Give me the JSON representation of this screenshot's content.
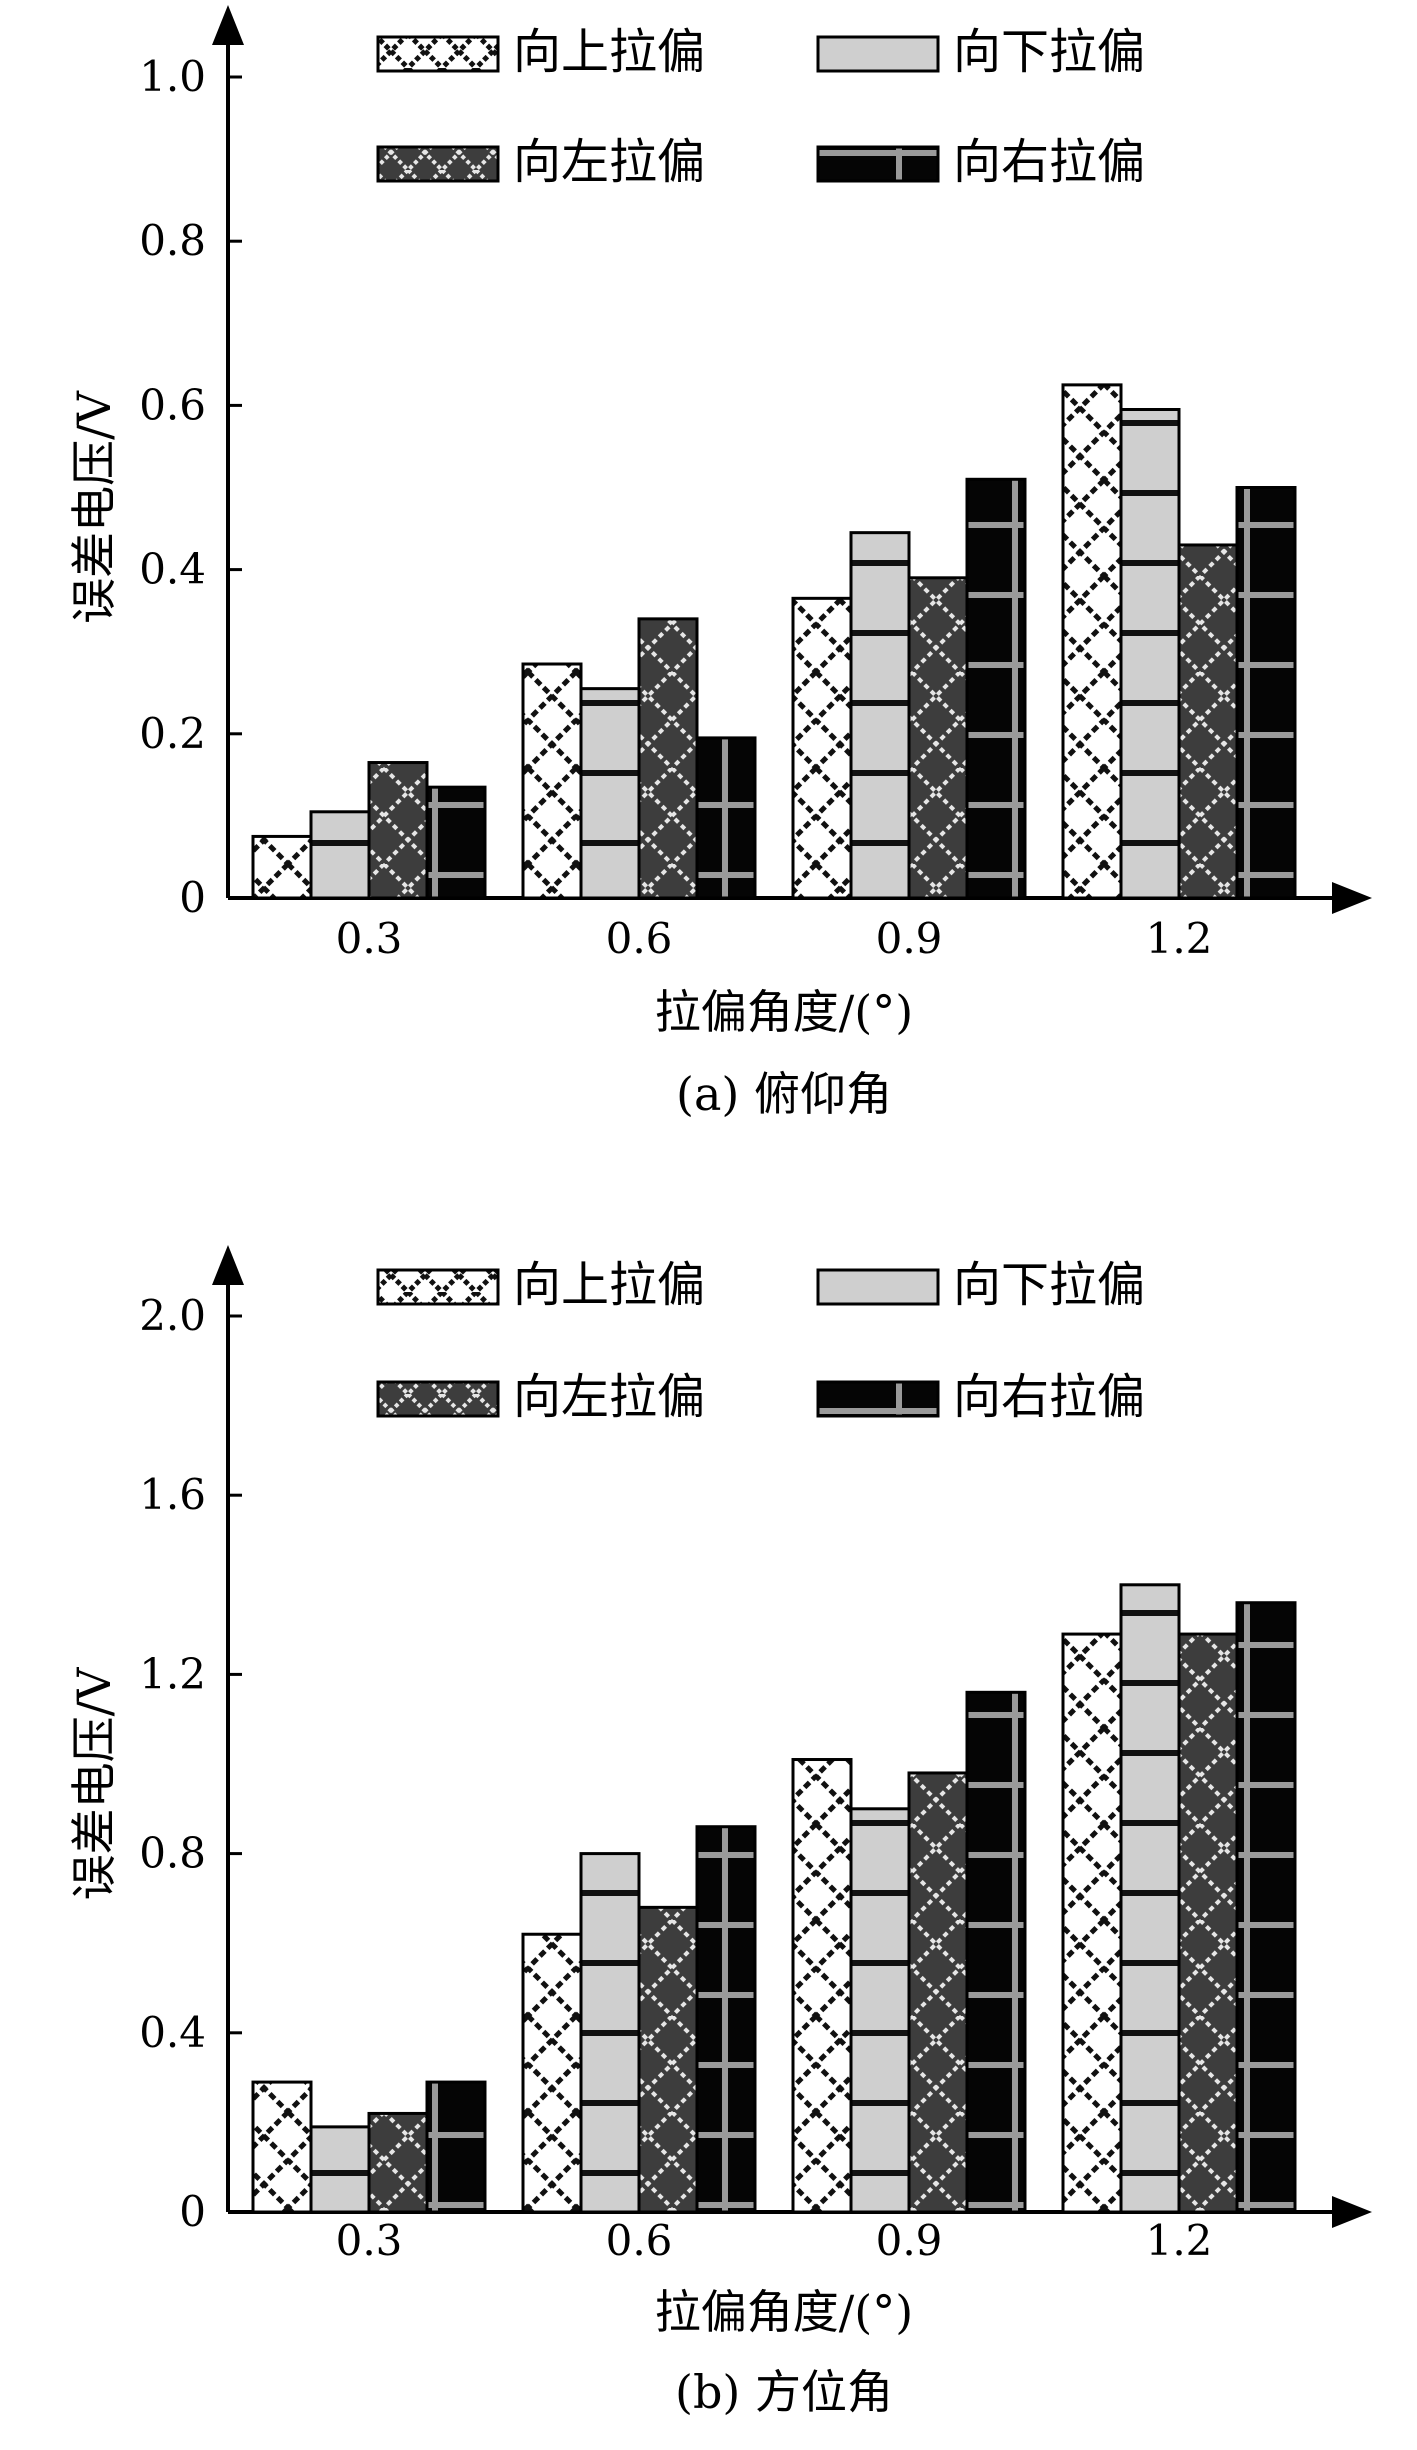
{
  "chart_data": [
    {
      "type": "bar",
      "caption": "(a) 俯仰角",
      "xlabel": "拉偏角度/(°)",
      "ylabel": "误差电压/V",
      "categories": [
        "0.3",
        "0.6",
        "0.9",
        "1.2"
      ],
      "ylim": [
        0,
        1.0
      ],
      "yticks": [
        "0",
        "0.2",
        "0.4",
        "0.6",
        "0.8",
        "1.0"
      ],
      "ytick_values": [
        0,
        0.2,
        0.4,
        0.6,
        0.8,
        1.0
      ],
      "legend_position": "top",
      "series": [
        {
          "name": "向上拉偏",
          "pattern": "cross-white",
          "values": [
            0.075,
            0.285,
            0.365,
            0.625
          ]
        },
        {
          "name": "向下拉偏",
          "pattern": "grey-hbar",
          "values": [
            0.105,
            0.255,
            0.445,
            0.595
          ]
        },
        {
          "name": "向左拉偏",
          "pattern": "cross-dark",
          "values": [
            0.165,
            0.34,
            0.39,
            0.43
          ]
        },
        {
          "name": "向右拉偏",
          "pattern": "black-plus",
          "values": [
            0.135,
            0.195,
            0.51,
            0.5
          ]
        }
      ]
    },
    {
      "type": "bar",
      "caption": "(b) 方位角",
      "xlabel": "拉偏角度/(°)",
      "ylabel": "误差电压/V",
      "categories": [
        "0.3",
        "0.6",
        "0.9",
        "1.2"
      ],
      "ylim": [
        0,
        2.0
      ],
      "yticks": [
        "0",
        "0.4",
        "0.8",
        "1.2",
        "1.6",
        "2.0"
      ],
      "ytick_values": [
        0,
        0.4,
        0.8,
        1.2,
        1.6,
        2.0
      ],
      "legend_position": "top",
      "series": [
        {
          "name": "向上拉偏",
          "pattern": "cross-white",
          "values": [
            0.29,
            0.62,
            1.01,
            1.29
          ]
        },
        {
          "name": "向下拉偏",
          "pattern": "grey-hbar",
          "values": [
            0.19,
            0.8,
            0.9,
            1.4
          ]
        },
        {
          "name": "向左拉偏",
          "pattern": "cross-dark",
          "values": [
            0.22,
            0.68,
            0.98,
            1.29
          ]
        },
        {
          "name": "向右拉偏",
          "pattern": "black-plus",
          "values": [
            0.29,
            0.86,
            1.16,
            1.36
          ]
        }
      ]
    }
  ]
}
